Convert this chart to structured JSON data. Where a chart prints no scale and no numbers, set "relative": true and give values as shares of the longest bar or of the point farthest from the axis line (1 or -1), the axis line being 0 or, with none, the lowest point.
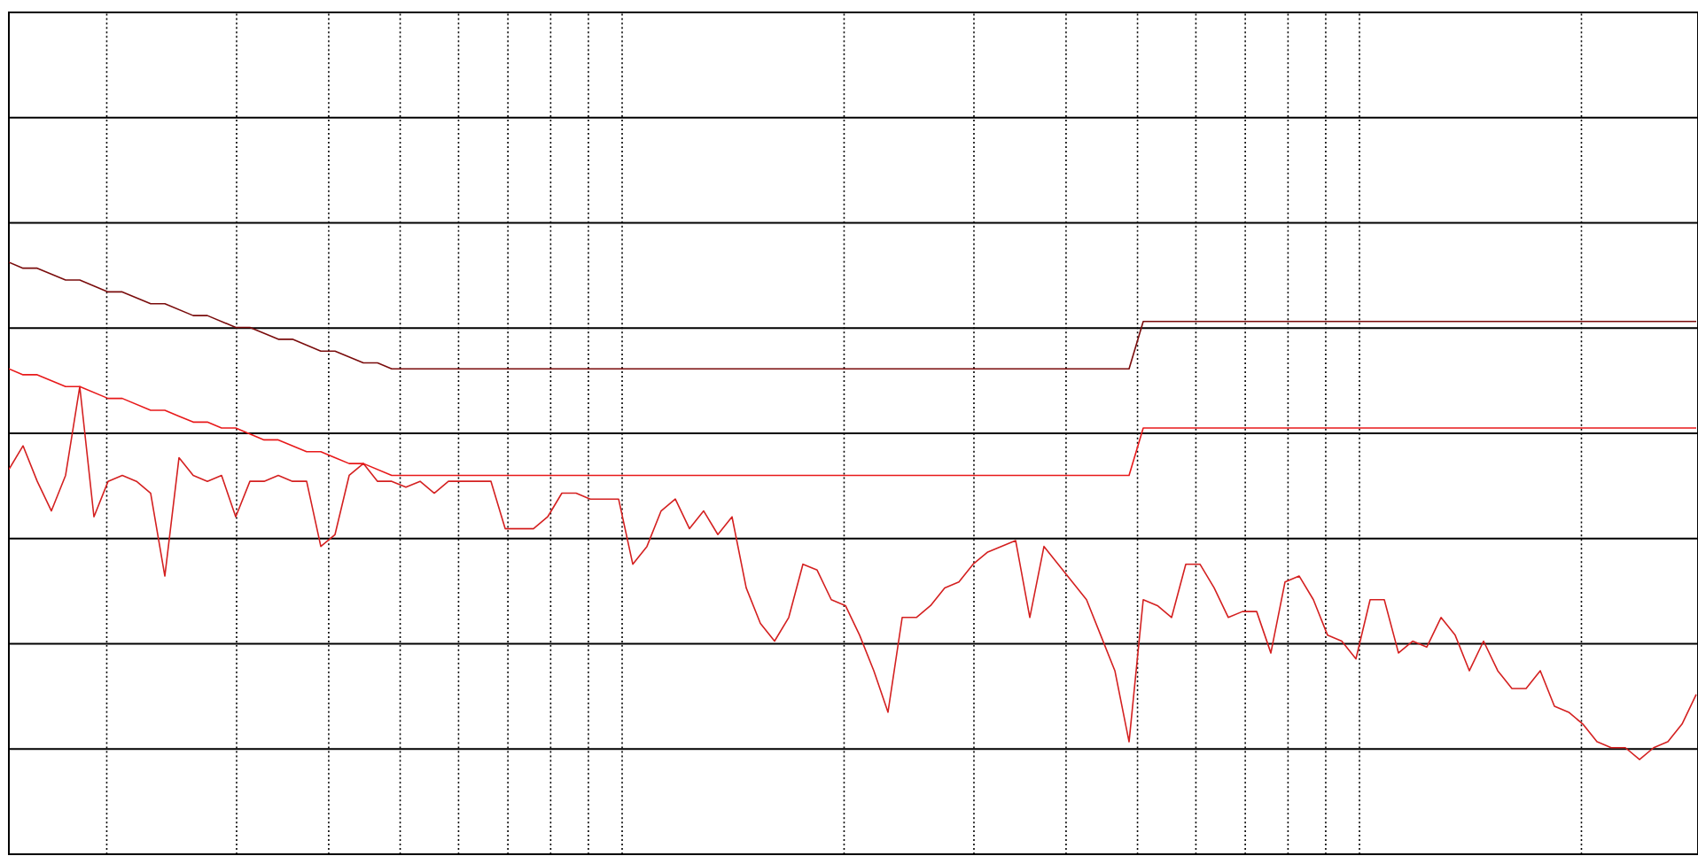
{
  "chart_data": {
    "type": "line",
    "relative": true,
    "grid": true,
    "tick_labels": false,
    "categories": [
      null,
      null,
      null,
      null,
      null,
      null,
      null,
      null,
      null,
      null,
      null,
      null,
      null,
      null,
      null,
      null,
      null,
      null,
      null,
      null,
      null,
      null,
      null,
      null,
      null,
      null,
      null,
      null,
      null,
      null,
      null,
      null,
      null,
      null,
      null,
      null,
      null,
      null,
      null,
      null,
      null,
      null,
      null,
      null,
      null,
      null,
      null,
      null,
      null,
      null,
      null,
      null,
      null,
      null,
      null,
      null,
      null,
      null,
      null,
      null,
      null,
      null,
      null,
      null,
      null,
      null,
      null,
      null,
      null,
      null,
      null,
      null,
      null,
      null,
      null,
      null,
      null,
      null,
      null,
      null,
      null,
      null,
      null,
      null,
      null,
      null,
      null,
      null,
      null,
      null,
      null,
      null,
      null,
      null,
      null,
      null,
      null,
      null,
      null,
      null,
      null,
      null,
      null,
      null,
      null,
      null,
      null,
      null,
      null,
      null,
      null,
      null,
      null,
      null,
      null,
      null,
      null,
      null,
      null,
      null
    ],
    "series": [
      {
        "color": "#d42020",
        "values": [
          0.65,
          0.69,
          0.63,
          0.58,
          0.64,
          0.79,
          0.57,
          0.63,
          0.64,
          0.63,
          0.61,
          0.47,
          0.67,
          0.64,
          0.63,
          0.64,
          0.57,
          0.63,
          0.63,
          0.64,
          0.63,
          0.63,
          0.52,
          0.54,
          0.64,
          0.66,
          0.63,
          0.63,
          0.62,
          0.63,
          0.61,
          0.63,
          0.63,
          0.63,
          0.63,
          0.55,
          0.55,
          0.55,
          0.57,
          0.61,
          0.61,
          0.6,
          0.6,
          0.6,
          0.49,
          0.52,
          0.58,
          0.6,
          0.55,
          0.58,
          0.54,
          0.57,
          0.45,
          0.39,
          0.36,
          0.4,
          0.49,
          0.48,
          0.43,
          0.42,
          0.37,
          0.31,
          0.24,
          0.4,
          0.4,
          0.42,
          0.45,
          0.46,
          0.49,
          0.51,
          0.52,
          0.53,
          0.4,
          0.52,
          0.49,
          0.46,
          0.43,
          0.37,
          0.31,
          0.19,
          0.43,
          0.42,
          0.4,
          0.49,
          0.49,
          0.45,
          0.4,
          0.41,
          0.41,
          0.34,
          0.46,
          0.47,
          0.43,
          0.37,
          0.36,
          0.33,
          0.43,
          0.43,
          0.34,
          0.36,
          0.35,
          0.4,
          0.37,
          0.31,
          0.36,
          0.31,
          0.28,
          0.28,
          0.31,
          0.25,
          0.24,
          0.22,
          0.19,
          0.18,
          0.18,
          0.16,
          0.18,
          0.19,
          0.22,
          0.27
        ]
      },
      {
        "color": "#7a0c0c",
        "values": [
          1.0,
          0.99,
          0.99,
          0.98,
          0.97,
          0.97,
          0.96,
          0.95,
          0.95,
          0.94,
          0.93,
          0.93,
          0.92,
          0.91,
          0.91,
          0.9,
          0.89,
          0.89,
          0.88,
          0.87,
          0.87,
          0.86,
          0.85,
          0.85,
          0.84,
          0.83,
          0.83,
          0.82,
          0.82,
          0.82,
          0.82,
          0.82,
          0.82,
          0.82,
          0.82,
          0.82,
          0.82,
          0.82,
          0.82,
          0.82,
          0.82,
          0.82,
          0.82,
          0.82,
          0.82,
          0.82,
          0.82,
          0.82,
          0.82,
          0.82,
          0.82,
          0.82,
          0.82,
          0.82,
          0.82,
          0.82,
          0.82,
          0.82,
          0.82,
          0.82,
          0.82,
          0.82,
          0.82,
          0.82,
          0.82,
          0.82,
          0.82,
          0.82,
          0.82,
          0.82,
          0.82,
          0.82,
          0.82,
          0.82,
          0.82,
          0.82,
          0.82,
          0.82,
          0.82,
          0.82,
          0.9,
          0.9,
          0.9,
          0.9,
          0.9,
          0.9,
          0.9,
          0.9,
          0.9,
          0.9,
          0.9,
          0.9,
          0.9,
          0.9,
          0.9,
          0.9,
          0.9,
          0.9,
          0.9,
          0.9,
          0.9,
          0.9,
          0.9,
          0.9,
          0.9,
          0.9,
          0.9,
          0.9,
          0.9,
          0.9,
          0.9,
          0.9,
          0.9,
          0.9,
          0.9,
          0.9,
          0.9,
          0.9,
          0.9,
          0.9
        ]
      },
      {
        "color": "#e8191a",
        "values": [
          0.82,
          0.81,
          0.81,
          0.8,
          0.79,
          0.79,
          0.78,
          0.77,
          0.77,
          0.76,
          0.75,
          0.75,
          0.74,
          0.73,
          0.73,
          0.72,
          0.72,
          0.71,
          0.7,
          0.7,
          0.69,
          0.68,
          0.68,
          0.67,
          0.66,
          0.66,
          0.65,
          0.64,
          0.64,
          0.64,
          0.64,
          0.64,
          0.64,
          0.64,
          0.64,
          0.64,
          0.64,
          0.64,
          0.64,
          0.64,
          0.64,
          0.64,
          0.64,
          0.64,
          0.64,
          0.64,
          0.64,
          0.64,
          0.64,
          0.64,
          0.64,
          0.64,
          0.64,
          0.64,
          0.64,
          0.64,
          0.64,
          0.64,
          0.64,
          0.64,
          0.64,
          0.64,
          0.64,
          0.64,
          0.64,
          0.64,
          0.64,
          0.64,
          0.64,
          0.64,
          0.64,
          0.64,
          0.64,
          0.64,
          0.64,
          0.64,
          0.64,
          0.64,
          0.64,
          0.64,
          0.72,
          0.72,
          0.72,
          0.72,
          0.72,
          0.72,
          0.72,
          0.72,
          0.72,
          0.72,
          0.72,
          0.72,
          0.72,
          0.72,
          0.72,
          0.72,
          0.72,
          0.72,
          0.72,
          0.72,
          0.72,
          0.72,
          0.72,
          0.72,
          0.72,
          0.72,
          0.72,
          0.72,
          0.72,
          0.72,
          0.72,
          0.72,
          0.72,
          0.72,
          0.72,
          0.72,
          0.72,
          0.72,
          0.72,
          0.72
        ]
      }
    ]
  }
}
